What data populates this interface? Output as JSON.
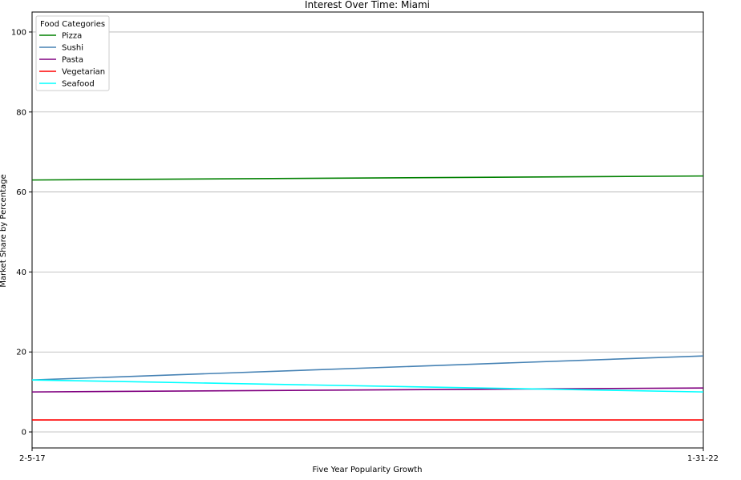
{
  "chart_data": {
    "type": "line",
    "title": "Interest Over Time: Miami",
    "xlabel": "Five Year Popularity Growth",
    "ylabel": "Market Share by Percentage",
    "x": [
      "2-5-17",
      "1-31-22"
    ],
    "ylim": [
      -4,
      105
    ],
    "yticks": [
      0,
      20,
      40,
      60,
      80,
      100
    ],
    "grid": "horizontal",
    "legend": {
      "title": "Food Categories",
      "placement": "top-left"
    },
    "series": [
      {
        "name": "Pizza",
        "color": "#008000",
        "values": [
          63,
          64
        ]
      },
      {
        "name": "Sushi",
        "color": "#4682b4",
        "values": [
          13,
          19
        ]
      },
      {
        "name": "Pasta",
        "color": "#800080",
        "values": [
          10,
          11
        ]
      },
      {
        "name": "Vegetarian",
        "color": "#ff0000",
        "values": [
          3,
          3
        ]
      },
      {
        "name": "Seafood",
        "color": "#00ffff",
        "values": [
          13,
          10
        ]
      }
    ]
  }
}
